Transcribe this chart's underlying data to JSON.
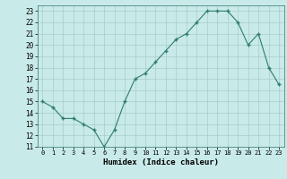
{
  "x": [
    0,
    1,
    2,
    3,
    4,
    5,
    6,
    7,
    8,
    9,
    10,
    11,
    12,
    13,
    14,
    15,
    16,
    17,
    18,
    19,
    20,
    21,
    22,
    23
  ],
  "y": [
    15,
    14.5,
    13.5,
    13.5,
    13,
    12.5,
    11,
    12.5,
    15,
    17,
    17.5,
    18.5,
    19.5,
    20.5,
    21,
    22,
    23,
    23,
    23,
    22,
    20,
    21,
    18,
    16.5
  ],
  "line_color": "#2e7d6e",
  "marker_color": "#2e7d6e",
  "bg_color": "#c8eae8",
  "grid_color": "#a8cec8",
  "xlabel": "Humidex (Indice chaleur)",
  "ylim": [
    11,
    23.5
  ],
  "xlim": [
    -0.5,
    23.5
  ],
  "yticks": [
    11,
    12,
    13,
    14,
    15,
    16,
    17,
    18,
    19,
    20,
    21,
    22,
    23
  ],
  "xticks": [
    0,
    1,
    2,
    3,
    4,
    5,
    6,
    7,
    8,
    9,
    10,
    11,
    12,
    13,
    14,
    15,
    16,
    17,
    18,
    19,
    20,
    21,
    22,
    23
  ]
}
